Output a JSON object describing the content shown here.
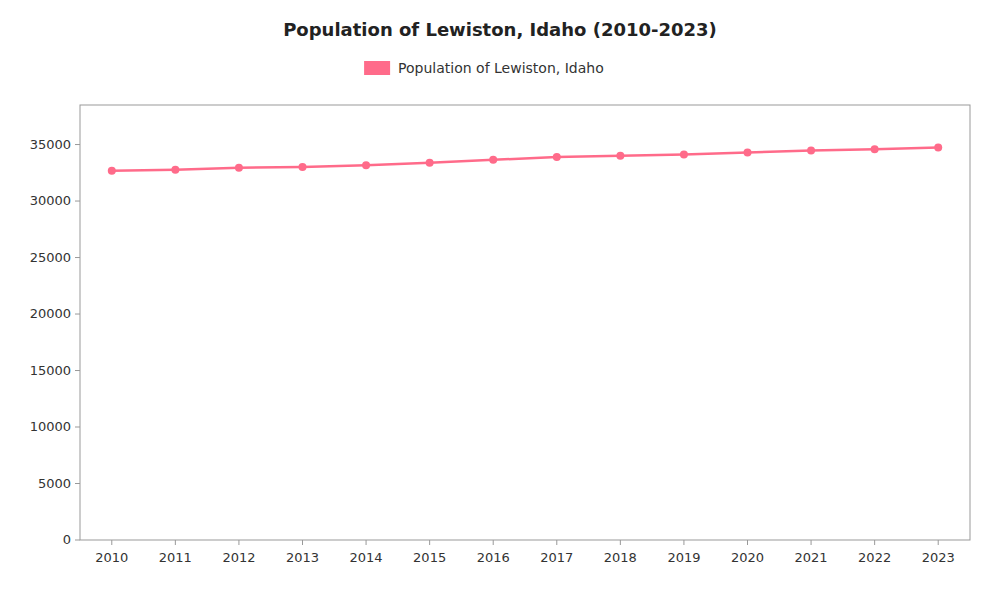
{
  "chart_data": {
    "type": "line",
    "title": "Population of Lewiston, Idaho (2010-2023)",
    "x": [
      2010,
      2011,
      2012,
      2013,
      2014,
      2015,
      2016,
      2017,
      2018,
      2019,
      2020,
      2021,
      2022,
      2023
    ],
    "series": [
      {
        "name": "Population of Lewiston, Idaho",
        "color": "#FF6B8A",
        "values": [
          32672,
          32769,
          32946,
          33002,
          33168,
          33388,
          33650,
          33896,
          34010,
          34113,
          34289,
          34478,
          34578,
          34731
        ]
      }
    ],
    "xlim": [
      2009.5,
      2023.5
    ],
    "xticks": [
      2010,
      2011,
      2012,
      2013,
      2014,
      2015,
      2016,
      2017,
      2018,
      2019,
      2020,
      2021,
      2022,
      2023
    ],
    "ylim": [
      0,
      38500
    ],
    "yticks": [
      0,
      5000,
      10000,
      15000,
      20000,
      25000,
      30000,
      35000
    ],
    "grid": false,
    "legend": "top",
    "marker": "circle"
  }
}
